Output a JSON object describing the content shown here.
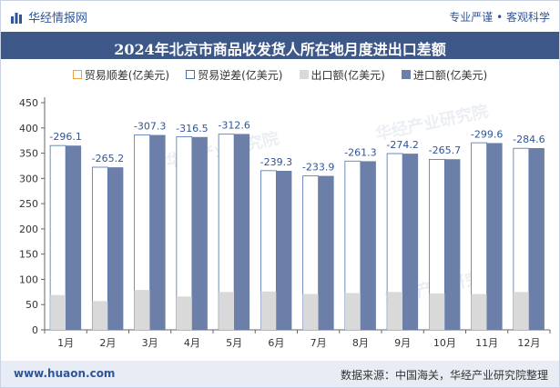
{
  "header": {
    "brand": "华经情报网",
    "brand_icon": "bar-chart-logo-icon",
    "tagline": "专业严谨 • 客观科学"
  },
  "watermark": "华经产业研究院",
  "chart_data": {
    "type": "bar",
    "title": "2024年北京市商品收发货人所在地月度进出口差额",
    "categories": [
      "1月",
      "2月",
      "3月",
      "4月",
      "5月",
      "6月",
      "7月",
      "8月",
      "9月",
      "10月",
      "11月",
      "12月"
    ],
    "series": [
      {
        "name": "贸易顺差(亿美元)",
        "values": [
          0,
          0,
          0,
          0,
          0,
          0,
          0,
          0,
          0,
          0,
          0,
          0
        ],
        "color": "#e8a33d"
      },
      {
        "name": "贸易逆差(亿美元)",
        "values": [
          -296.1,
          -265.2,
          -307.3,
          -316.5,
          -312.6,
          -239.3,
          -233.9,
          -261.3,
          -274.2,
          -265.7,
          -299.6,
          -284.6
        ],
        "color": "#4a6fb5"
      },
      {
        "name": "出口额(亿美元)",
        "values": [
          69,
          57,
          79,
          66,
          75,
          76,
          71,
          73,
          75,
          72,
          71,
          75
        ],
        "color": "#d9d9d9"
      },
      {
        "name": "进口额(亿美元)",
        "values": [
          365,
          322,
          386,
          382,
          388,
          315,
          305,
          334,
          349,
          338,
          370,
          360
        ],
        "color": "#6b7fa8"
      }
    ],
    "data_labels": [
      "-296.1",
      "-265.2",
      "-307.3",
      "-316.5",
      "-312.6",
      "-239.3",
      "-233.9",
      "-261.3",
      "-274.2",
      "-265.7",
      "-299.6",
      "-284.6"
    ],
    "ylim": [
      0,
      450
    ],
    "yticks": [
      0,
      50,
      100,
      150,
      200,
      250,
      300,
      350,
      400,
      450
    ],
    "grid": false,
    "legend": "top"
  },
  "footer": {
    "site": "www.huaon.com",
    "source": "数据来源：中国海关，华经产业研究院整理"
  }
}
